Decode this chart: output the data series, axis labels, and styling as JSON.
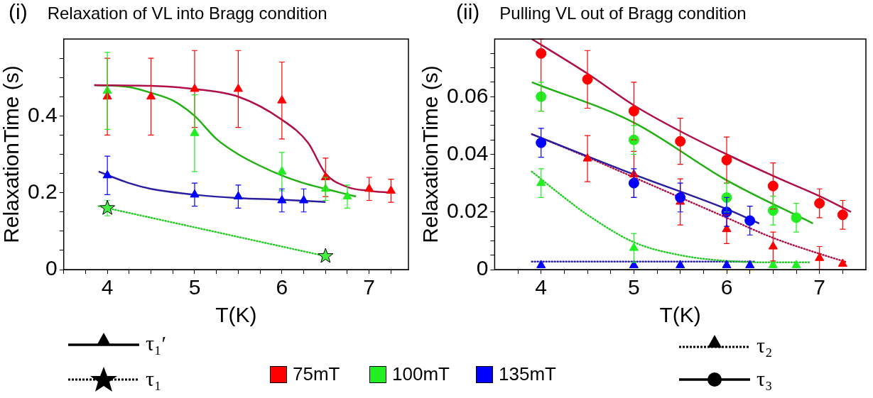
{
  "chart_data": [
    {
      "type": "scatter",
      "title": "Relaxation of VL into Bragg condition",
      "xlabel": "T(K)",
      "ylabel": "RelaxationTime (s)",
      "annotations": [
        "(i)",
        "τ₁′",
        "τ₁"
      ],
      "grid": false,
      "legend": false,
      "xlim": [
        3.5,
        7.45
      ],
      "xticks": [
        {
          "value": 3.5,
          "label": null
        },
        {
          "value": 3.75,
          "label": null
        },
        4,
        {
          "value": 4.25,
          "label": null
        },
        {
          "value": 4.5,
          "label": null
        },
        {
          "value": 4.75,
          "label": null
        },
        5,
        {
          "value": 5.25,
          "label": null
        },
        {
          "value": 5.5,
          "label": null
        },
        {
          "value": 5.75,
          "label": null
        },
        6,
        {
          "value": 6.25,
          "label": null
        },
        {
          "value": 6.5,
          "label": null
        },
        {
          "value": 6.75,
          "label": null
        },
        7,
        {
          "value": 7.25,
          "label": null
        }
      ],
      "ylim": [
        0,
        0.6
      ],
      "yticks": [
        0,
        {
          "value": 0.05,
          "label": null
        },
        {
          "value": 0.1,
          "label": null
        },
        {
          "value": 0.15,
          "label": null
        },
        0.2,
        {
          "value": 0.25,
          "label": null
        },
        {
          "value": 0.3,
          "label": null
        },
        {
          "value": 0.35,
          "label": null
        },
        0.4,
        {
          "value": 0.45,
          "label": null
        },
        {
          "value": 0.5,
          "label": null
        },
        {
          "value": 0.55,
          "label": null
        }
      ],
      "series": [
        {
          "type": "line",
          "color": "#b0104a",
          "line_style": "solid",
          "marker": "none",
          "x": [
            3.85,
            4.5,
            5,
            5.5,
            6,
            6.3,
            6.5,
            6.75,
            7,
            7.25
          ],
          "values": [
            0.48,
            0.478,
            0.47,
            0.45,
            0.39,
            0.33,
            0.25,
            0.215,
            0.205,
            0.2
          ]
        },
        {
          "type": "line",
          "color": "#22b014",
          "line_style": "solid",
          "marker": "none",
          "x": [
            3.85,
            4.25,
            4.5,
            4.75,
            5,
            5.25,
            5.5,
            5.75,
            6,
            6.25,
            6.5,
            6.85
          ],
          "values": [
            0.48,
            0.475,
            0.46,
            0.44,
            0.4,
            0.34,
            0.3,
            0.27,
            0.245,
            0.225,
            0.21,
            0.19
          ]
        },
        {
          "type": "line",
          "color": "#2a1fa0",
          "line_style": "solid",
          "marker": "none",
          "x": [
            3.9,
            4.25,
            4.5,
            5,
            5.5,
            6,
            6.5
          ],
          "values": [
            0.255,
            0.225,
            0.21,
            0.195,
            0.186,
            0.182,
            0.176
          ]
        },
        {
          "type": "line",
          "color": "#22cc22",
          "line_style": "dotted",
          "marker": "none",
          "x": [
            3.9,
            6.5
          ],
          "values": [
            0.165,
            0.035
          ]
        },
        {
          "color": "#ff0000",
          "marker": "triangle",
          "x": [
            4,
            4.5,
            5,
            5.5,
            6,
            6.5,
            7,
            7.25
          ],
          "values": [
            0.45,
            0.45,
            0.47,
            0.47,
            0.44,
            0.24,
            0.21,
            0.205
          ],
          "errors": [
            0.1,
            0.1,
            0.1,
            0.1,
            0.1,
            0.05,
            0.03,
            0.03
          ]
        },
        {
          "color": "#22ee22",
          "marker": "triangle",
          "x": [
            4,
            5,
            6,
            6.5,
            6.75
          ],
          "values": [
            0.465,
            0.355,
            0.255,
            0.21,
            0.19
          ],
          "errors": [
            0.1,
            0.1,
            0.05,
            0.03,
            0.03
          ]
        },
        {
          "color": "#0000ff",
          "marker": "triangle",
          "x": [
            4,
            5,
            5.5,
            6,
            6.25
          ],
          "values": [
            0.245,
            0.195,
            0.19,
            0.18,
            0.18
          ],
          "errors": [
            0.05,
            0.03,
            0.03,
            0.03,
            0.03
          ]
        },
        {
          "color": "#44ee44",
          "marker": "star",
          "x": [
            4,
            6.5
          ],
          "values": [
            0.16,
            0.035
          ],
          "errors": [
            0.02,
            null
          ]
        }
      ]
    },
    {
      "type": "scatter",
      "title": "Pulling VL out of Bragg condition",
      "xlabel": "T(K)",
      "ylabel": "RelaxationTime (s)",
      "annotations": [
        "(ii)",
        "75mT",
        "100mT",
        "135mT",
        "τ₂",
        "τ₃"
      ],
      "grid": false,
      "legend": false,
      "xlim": [
        3.5,
        7.5
      ],
      "xticks": [
        {
          "value": 3.75,
          "label": null
        },
        4,
        {
          "value": 4.25,
          "label": null
        },
        {
          "value": 4.5,
          "label": null
        },
        {
          "value": 4.75,
          "label": null
        },
        5,
        {
          "value": 5.25,
          "label": null
        },
        {
          "value": 5.5,
          "label": null
        },
        {
          "value": 5.75,
          "label": null
        },
        6,
        {
          "value": 6.25,
          "label": null
        },
        {
          "value": 6.5,
          "label": null
        },
        {
          "value": 6.75,
          "label": null
        },
        7,
        {
          "value": 7.25,
          "label": null
        }
      ],
      "ylim": [
        0,
        0.08
      ],
      "yticks": [
        0,
        {
          "value": 0.005,
          "label": null
        },
        {
          "value": 0.01,
          "label": null
        },
        {
          "value": 0.015,
          "label": null
        },
        0.02,
        {
          "value": 0.025,
          "label": null
        },
        {
          "value": 0.03,
          "label": null
        },
        {
          "value": 0.035,
          "label": null
        },
        0.04,
        {
          "value": 0.045,
          "label": null
        },
        {
          "value": 0.05,
          "label": null
        },
        {
          "value": 0.055,
          "label": null
        },
        0.06,
        {
          "value": 0.065,
          "label": null
        },
        {
          "value": 0.07,
          "label": null
        },
        {
          "value": 0.075,
          "label": null
        }
      ],
      "series": [
        {
          "type": "line",
          "color": "#b0104a",
          "line_style": "solid",
          "marker": "none",
          "x": [
            3.9,
            4.5,
            5,
            5.5,
            6,
            6.5,
            7,
            7.34
          ],
          "values": [
            0.08,
            0.068,
            0.057,
            0.048,
            0.04,
            0.0325,
            0.0255,
            0.02
          ]
        },
        {
          "type": "line",
          "color": "#22b014",
          "line_style": "solid",
          "marker": "none",
          "x": [
            3.9,
            5,
            6,
            6.93
          ],
          "values": [
            0.065,
            0.051,
            0.031,
            0.016
          ]
        },
        {
          "type": "line",
          "color": "#2a1fa0",
          "line_style": "solid",
          "marker": "none",
          "x": [
            3.9,
            5,
            6,
            6.35
          ],
          "values": [
            0.047,
            0.033,
            0.021,
            0.016
          ]
        },
        {
          "type": "line",
          "color": "#b0104a",
          "line_style": "dotted",
          "marker": "none",
          "x": [
            3.9,
            4.5,
            5,
            5.5,
            6,
            6.5,
            7,
            7.3
          ],
          "values": [
            0.047,
            0.039,
            0.032,
            0.025,
            0.018,
            0.011,
            0.0055,
            0.0025
          ]
        },
        {
          "type": "line",
          "color": "#22cc22",
          "line_style": "dotted",
          "marker": "none",
          "x": [
            3.9,
            4.25,
            4.5,
            5,
            5.5,
            6,
            6.5,
            6.9
          ],
          "values": [
            0.034,
            0.025,
            0.019,
            0.0095,
            0.005,
            0.003,
            0.0025,
            0.0025
          ]
        },
        {
          "type": "line",
          "color": "#2a1fa0",
          "line_style": "dotted",
          "marker": "none",
          "x": [
            3.9,
            6.3
          ],
          "values": [
            0.0028,
            0.0028
          ]
        },
        {
          "color": "#ff0000",
          "marker": "triangle",
          "x": [
            4.5,
            5,
            5.5,
            6,
            6.5,
            7,
            7.25
          ],
          "values": [
            0.0385,
            0.033,
            0.0235,
            0.014,
            0.008,
            0.004,
            0.002
          ],
          "errors": [
            0.008,
            0.008,
            0.008,
            0.005,
            0.005,
            0.004,
            null
          ]
        },
        {
          "color": "#22ee22",
          "marker": "triangle",
          "x": [
            4,
            5,
            6.5,
            6.75
          ],
          "values": [
            0.03,
            0.0075,
            0.0015,
            0.0015
          ],
          "errors": [
            0.005,
            0.005,
            null,
            null
          ]
        },
        {
          "color": "#0000ff",
          "marker": "triangle",
          "x": [
            4,
            5,
            5.5,
            6,
            6.25
          ],
          "values": [
            0.0015,
            0.0015,
            0.0015,
            0.0015,
            0.0015
          ]
        },
        {
          "color": "#ff0000",
          "marker": "circle",
          "x": [
            4,
            4.5,
            5,
            5.5,
            6,
            6.5,
            7,
            7.25
          ],
          "values": [
            0.075,
            0.066,
            0.055,
            0.0445,
            0.038,
            0.029,
            0.023,
            0.019
          ],
          "errors": [
            [
              0.055,
              0.08
            ],
            0.01,
            0.01,
            0.008,
            0.008,
            0.008,
            0.005,
            0.005
          ]
        },
        {
          "color": "#22ee22",
          "marker": "circle",
          "x": [
            4,
            5,
            6,
            6.5,
            6.75
          ],
          "values": [
            0.06,
            0.045,
            0.025,
            0.0205,
            0.018
          ],
          "errors": [
            0.005,
            0.005,
            0.005,
            0.005,
            0.005
          ]
        },
        {
          "color": "#0000ff",
          "marker": "circle",
          "x": [
            4,
            5,
            5.5,
            6,
            6.25
          ],
          "values": [
            0.044,
            0.03,
            0.025,
            0.02,
            0.017
          ],
          "errors": [
            0.005,
            0.005,
            0.005,
            0.005,
            0.005
          ]
        }
      ]
    }
  ]
}
